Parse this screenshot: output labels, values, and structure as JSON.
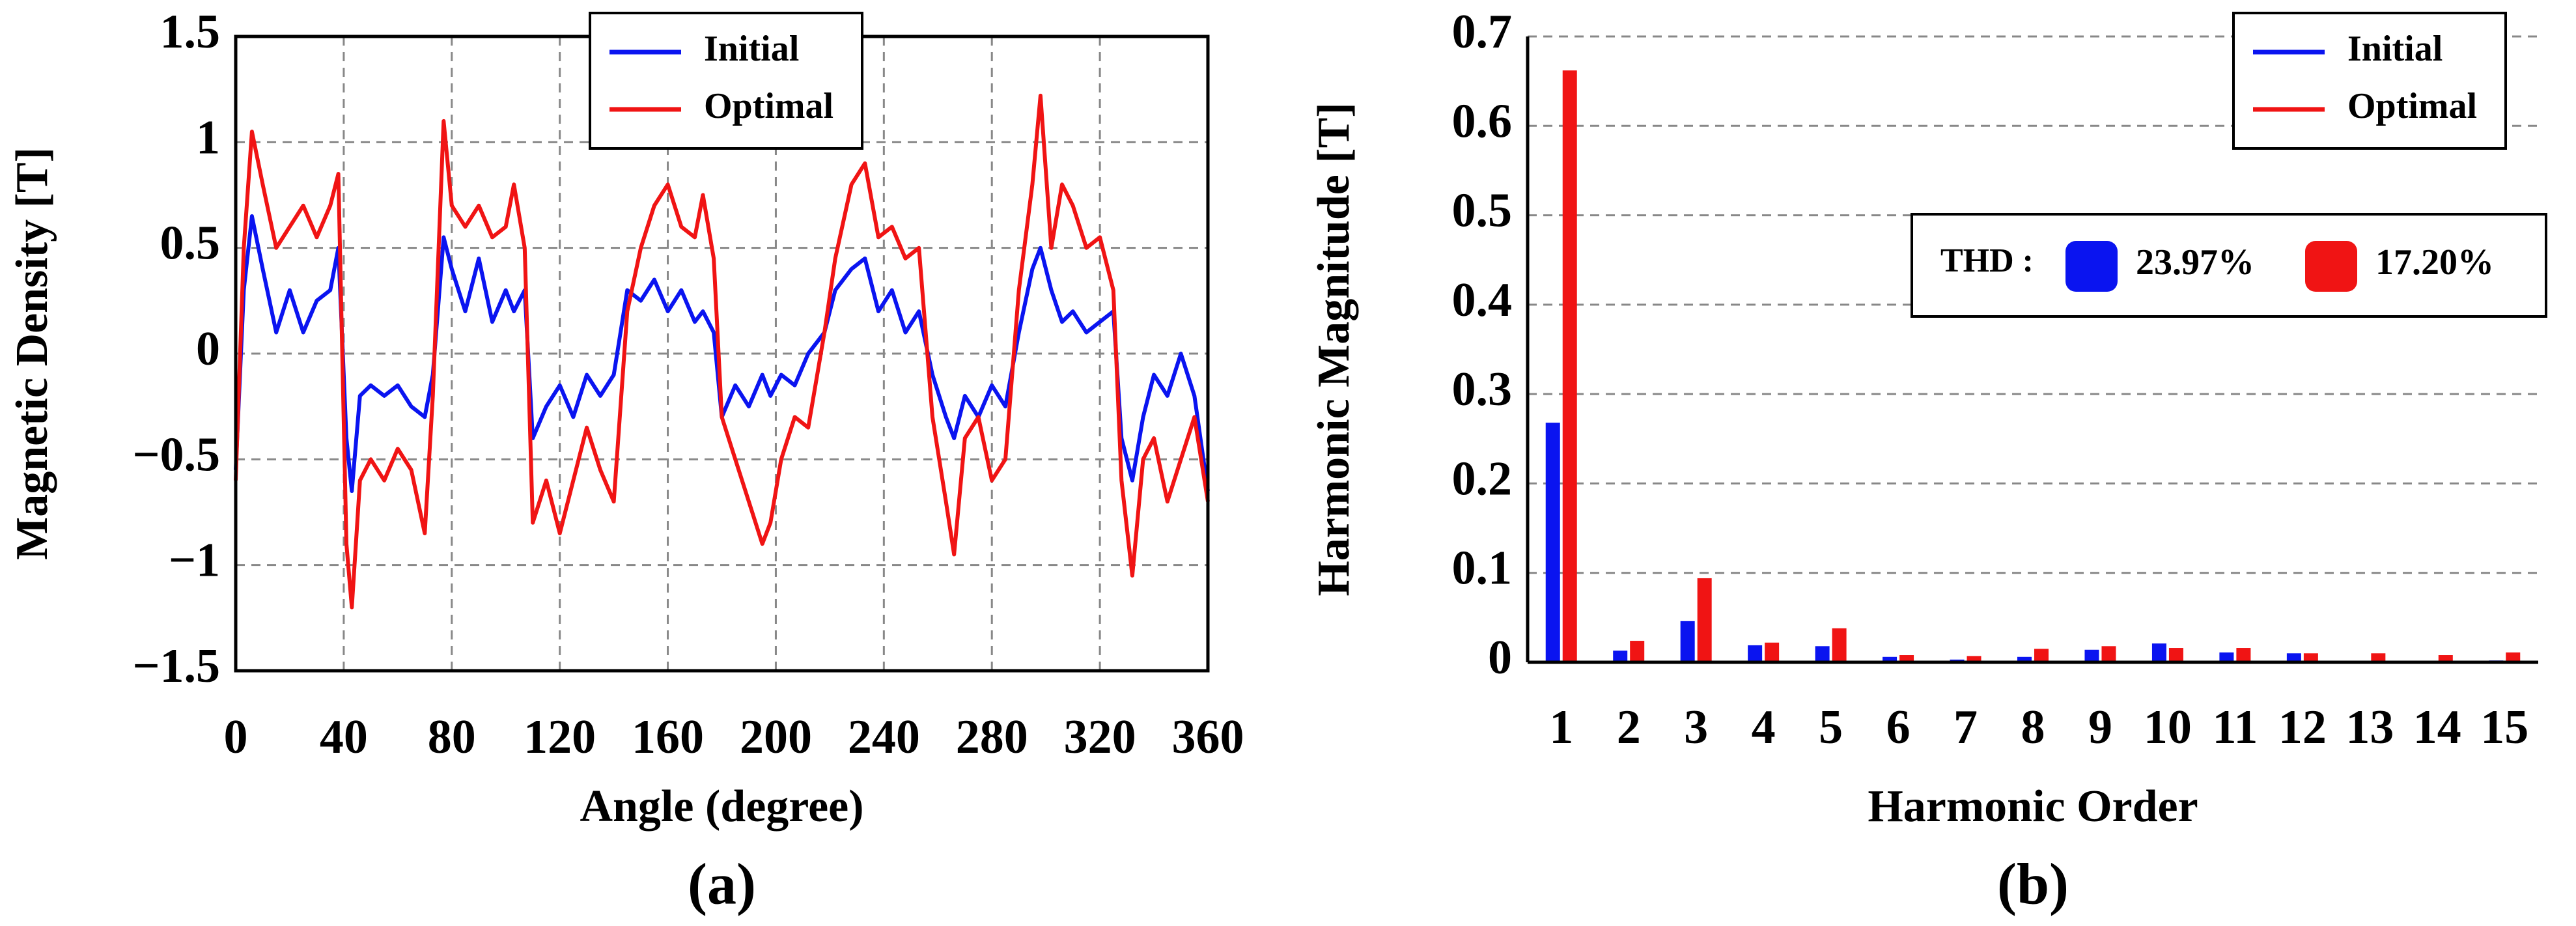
{
  "chart_data": [
    {
      "type": "line",
      "xlabel": "Angle (degree)",
      "ylabel": "Magnetic Density [T]",
      "caption": "(a)",
      "xlim": [
        0,
        360
      ],
      "xticks": [
        0,
        40,
        80,
        120,
        160,
        200,
        240,
        280,
        320,
        360
      ],
      "ylim": [
        -1.5,
        1.5
      ],
      "yticks": [
        {
          "value": -1.5,
          "label": "−1.5"
        },
        {
          "value": -1,
          "label": "−1"
        },
        {
          "value": -0.5,
          "label": "−0.5"
        },
        0,
        0.5,
        1,
        1.5
      ],
      "grid": true,
      "legend": "top",
      "x": [
        0,
        3,
        6,
        10,
        15,
        20,
        25,
        30,
        35,
        38,
        41,
        43,
        46,
        50,
        55,
        60,
        65,
        70,
        73,
        77,
        80,
        85,
        90,
        95,
        100,
        103,
        107,
        110,
        115,
        120,
        125,
        130,
        135,
        140,
        145,
        150,
        155,
        160,
        165,
        170,
        173,
        177,
        180,
        185,
        190,
        195,
        198,
        202,
        207,
        212,
        218,
        222,
        228,
        233,
        238,
        243,
        248,
        253,
        258,
        263,
        266,
        270,
        275,
        280,
        285,
        290,
        295,
        298,
        302,
        306,
        310,
        315,
        320,
        325,
        328,
        332,
        336,
        340,
        345,
        350,
        355,
        360
      ],
      "series": [
        {
          "name": "Initial",
          "color": "#0a14f0",
          "values": [
            -0.55,
            0.3,
            0.65,
            0.4,
            0.1,
            0.3,
            0.1,
            0.25,
            0.3,
            0.5,
            -0.4,
            -0.65,
            -0.2,
            -0.15,
            -0.2,
            -0.15,
            -0.25,
            -0.3,
            -0.1,
            0.55,
            0.4,
            0.2,
            0.45,
            0.15,
            0.3,
            0.2,
            0.3,
            -0.4,
            -0.25,
            -0.15,
            -0.3,
            -0.1,
            -0.2,
            -0.1,
            0.3,
            0.25,
            0.35,
            0.2,
            0.3,
            0.15,
            0.2,
            0.1,
            -0.3,
            -0.15,
            -0.25,
            -0.1,
            -0.2,
            -0.1,
            -0.15,
            0.0,
            0.1,
            0.3,
            0.4,
            0.45,
            0.2,
            0.3,
            0.1,
            0.2,
            -0.1,
            -0.3,
            -0.4,
            -0.2,
            -0.3,
            -0.15,
            -0.25,
            0.1,
            0.4,
            0.5,
            0.3,
            0.15,
            0.2,
            0.1,
            0.15,
            0.2,
            -0.4,
            -0.6,
            -0.3,
            -0.1,
            -0.2,
            0.0,
            -0.2,
            -0.65
          ]
        },
        {
          "name": "Optimal",
          "color": "#f01414",
          "values": [
            -0.6,
            0.5,
            1.05,
            0.8,
            0.5,
            0.6,
            0.7,
            0.55,
            0.7,
            0.85,
            -0.9,
            -1.2,
            -0.6,
            -0.5,
            -0.6,
            -0.45,
            -0.55,
            -0.85,
            -0.2,
            1.1,
            0.7,
            0.6,
            0.7,
            0.55,
            0.6,
            0.8,
            0.5,
            -0.8,
            -0.6,
            -0.85,
            -0.6,
            -0.35,
            -0.55,
            -0.7,
            0.2,
            0.5,
            0.7,
            0.8,
            0.6,
            0.55,
            0.75,
            0.45,
            -0.3,
            -0.5,
            -0.7,
            -0.9,
            -0.8,
            -0.5,
            -0.3,
            -0.35,
            0.1,
            0.45,
            0.8,
            0.9,
            0.55,
            0.6,
            0.45,
            0.5,
            -0.3,
            -0.7,
            -0.95,
            -0.4,
            -0.3,
            -0.6,
            -0.5,
            0.3,
            0.8,
            1.22,
            0.5,
            0.8,
            0.7,
            0.5,
            0.55,
            0.3,
            -0.6,
            -1.05,
            -0.5,
            -0.4,
            -0.7,
            -0.5,
            -0.3,
            -0.7
          ]
        }
      ]
    },
    {
      "type": "bar",
      "xlabel": "Harmonic Order",
      "ylabel": "Harmonic  Magnitude [T]",
      "caption": "(b)",
      "categories": [
        "1",
        "2",
        "3",
        "4",
        "5",
        "6",
        "7",
        "8",
        "9",
        "10",
        "11",
        "12",
        "13",
        "14",
        "15"
      ],
      "ylim": [
        0,
        0.7
      ],
      "yticks": [
        0,
        0.1,
        0.2,
        0.3,
        0.4,
        0.5,
        0.6,
        0.7
      ],
      "grid": true,
      "legend": "top right",
      "series": [
        {
          "name": "Initial",
          "color": "#0a14f0",
          "values": [
            0.268,
            0.013,
            0.046,
            0.019,
            0.018,
            0.006,
            0.003,
            0.006,
            0.014,
            0.021,
            0.011,
            0.01,
            0.001,
            0.001,
            0.002
          ]
        },
        {
          "name": "Optimal",
          "color": "#f01414",
          "values": [
            0.662,
            0.024,
            0.094,
            0.022,
            0.038,
            0.008,
            0.007,
            0.015,
            0.018,
            0.016,
            0.016,
            0.01,
            0.01,
            0.008,
            0.011
          ]
        }
      ],
      "annotation": {
        "label": "THD :",
        "values": [
          "23.97%",
          "17.20%"
        ]
      }
    }
  ]
}
